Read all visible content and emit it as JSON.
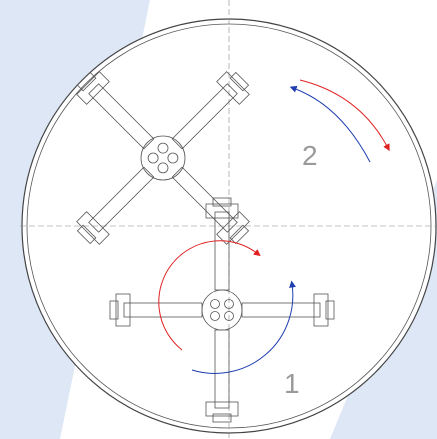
{
  "labels": [
    {
      "text": "2"
    },
    {
      "text": "1"
    }
  ]
}
